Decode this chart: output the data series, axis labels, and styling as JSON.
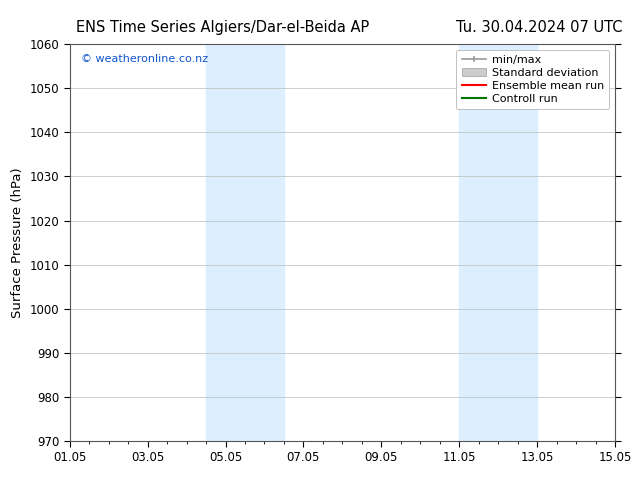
{
  "title_left": "ENS Time Series Algiers/Dar-el-Beida AP",
  "title_right": "Tu. 30.04.2024 07 UTC",
  "ylabel": "Surface Pressure (hPa)",
  "ylim": [
    970,
    1060
  ],
  "yticks": [
    970,
    980,
    990,
    1000,
    1010,
    1020,
    1030,
    1040,
    1050,
    1060
  ],
  "xtick_labels": [
    "01.05",
    "03.05",
    "05.05",
    "07.05",
    "09.05",
    "11.05",
    "13.05",
    "15.05"
  ],
  "xtick_positions": [
    0,
    2,
    4,
    6,
    8,
    10,
    12,
    14
  ],
  "xlim": [
    0,
    14
  ],
  "shaded_bands": [
    {
      "x_start": 3.5,
      "x_end": 5.5
    },
    {
      "x_start": 10.0,
      "x_end": 12.0
    }
  ],
  "shaded_color": "#ddeeff",
  "watermark": "© weatheronline.co.nz",
  "watermark_color": "#1155cc",
  "legend_items": [
    {
      "label": "min/max",
      "color": "#aaaaaa",
      "type": "errorbar"
    },
    {
      "label": "Standard deviation",
      "color": "#cccccc",
      "type": "bar"
    },
    {
      "label": "Ensemble mean run",
      "color": "#ff0000",
      "type": "line"
    },
    {
      "label": "Controll run",
      "color": "#007700",
      "type": "line"
    }
  ],
  "bg_color": "#ffffff",
  "grid_color": "#bbbbbb",
  "tick_label_fontsize": 8.5,
  "title_fontsize": 10.5,
  "ylabel_fontsize": 9.5,
  "legend_fontsize": 8,
  "fig_width": 6.34,
  "fig_height": 4.9,
  "fig_dpi": 100
}
